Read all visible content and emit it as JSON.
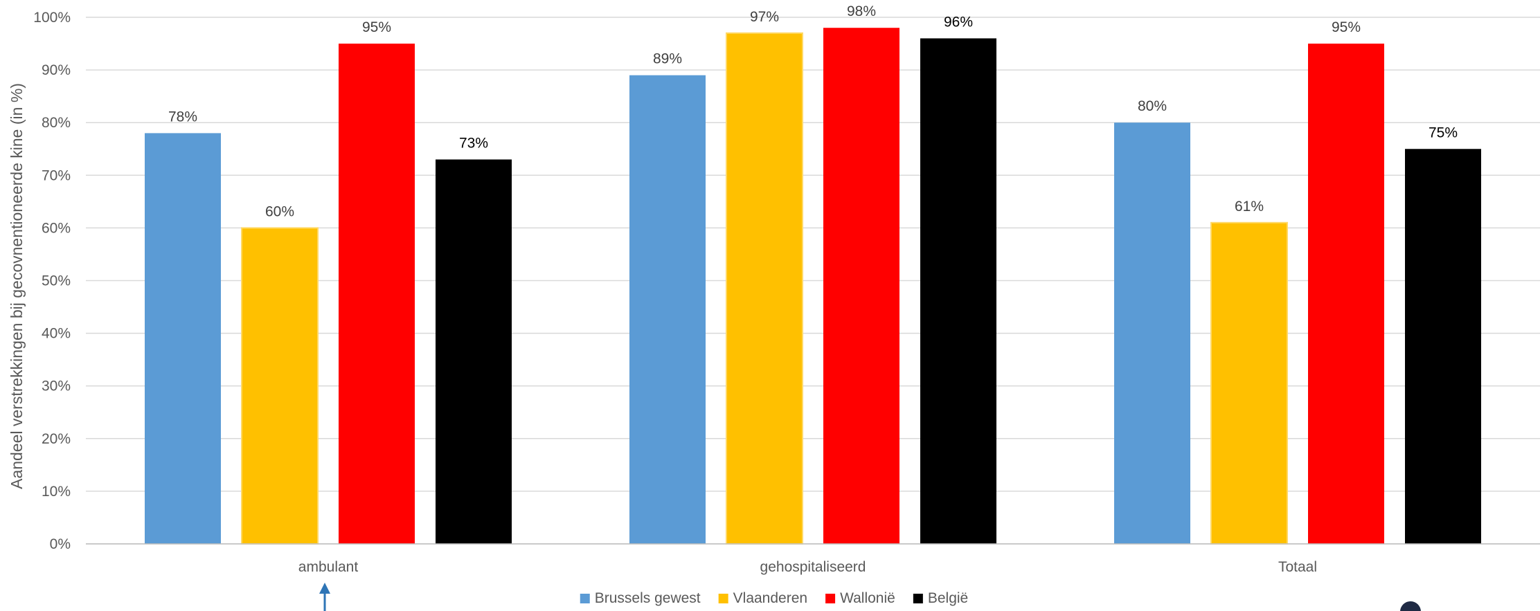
{
  "chart_data": {
    "type": "bar",
    "categories": [
      "ambulant",
      "gehospitaliseerd",
      "Totaal"
    ],
    "series": [
      {
        "name": "Brussels gewest",
        "color": "#5B9BD5",
        "values": [
          78,
          89,
          80
        ],
        "labels": [
          "78%",
          "89%",
          "80%"
        ]
      },
      {
        "name": "Vlaanderen",
        "color": "#FFC000",
        "values": [
          60,
          97,
          61
        ],
        "labels": [
          "60%",
          "97%",
          "61%"
        ]
      },
      {
        "name": "Wallonië",
        "color": "#FF0000",
        "values": [
          95,
          98,
          95
        ],
        "labels": [
          "95%",
          "98%",
          "95%"
        ]
      },
      {
        "name": "België",
        "color": "#000000",
        "values": [
          73,
          96,
          75
        ],
        "labels": [
          "73%",
          "96%",
          "75%"
        ]
      }
    ],
    "ylabel": "Aandeel verstrekkingen bij gecovnentioneerde kine (in %)",
    "ylim": [
      0,
      100
    ],
    "yticks": [
      "0%",
      "10%",
      "20%",
      "30%",
      "40%",
      "50%",
      "60%",
      "70%",
      "80%",
      "90%",
      "100%"
    ],
    "grid": true,
    "legend": "bottom-center",
    "dark_label_series": [
      "België"
    ]
  }
}
